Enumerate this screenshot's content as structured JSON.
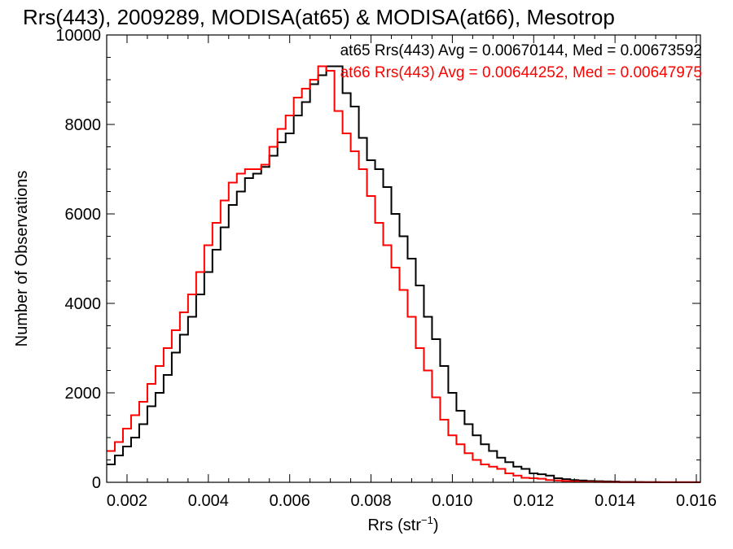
{
  "chart_data": {
    "type": "line",
    "title": "Rrs(443), 2009289, MODISA(at65) & MODISA(at66), Mesotrop",
    "xlabel": "Rrs (str",
    "xlabel_sup": "−1",
    "xlabel_suffix": ")",
    "ylabel": "Number of Observations",
    "xlim": [
      0.0015,
      0.0161
    ],
    "ylim": [
      0,
      10000
    ],
    "x_ticks": [
      0.002,
      0.004,
      0.006,
      0.008,
      0.01,
      0.012,
      0.014,
      0.016
    ],
    "x_tick_labels": [
      "0.002",
      "0.004",
      "0.006",
      "0.008",
      "0.010",
      "0.012",
      "0.014",
      "0.016"
    ],
    "y_ticks": [
      0,
      2000,
      4000,
      6000,
      8000,
      10000
    ],
    "y_tick_labels": [
      "0",
      "2000",
      "4000",
      "6000",
      "8000",
      "10000"
    ],
    "grid": false,
    "legend_position": "top-right",
    "legend": [
      "at65 Rrs(443) Avg = 0.00670144, Med = 0.00673592",
      "at66 Rrs(443) Avg = 0.00644252, Med = 0.00647975"
    ],
    "series": [
      {
        "name": "at65",
        "color": "#000000",
        "x": [
          0.0015,
          0.0017,
          0.0019,
          0.0021,
          0.0023,
          0.0025,
          0.0027,
          0.0029,
          0.0031,
          0.0033,
          0.0035,
          0.0037,
          0.0039,
          0.0041,
          0.0043,
          0.0045,
          0.0047,
          0.0049,
          0.0051,
          0.0053,
          0.0055,
          0.0057,
          0.0059,
          0.0061,
          0.0063,
          0.0065,
          0.0067,
          0.0069,
          0.0071,
          0.0073,
          0.0075,
          0.0077,
          0.0079,
          0.0081,
          0.0083,
          0.0085,
          0.0087,
          0.0089,
          0.0091,
          0.0093,
          0.0095,
          0.0097,
          0.0099,
          0.0101,
          0.0103,
          0.0105,
          0.0107,
          0.0109,
          0.0111,
          0.0113,
          0.0115,
          0.0117,
          0.0119,
          0.0121,
          0.0123,
          0.0125,
          0.0127,
          0.0129,
          0.0131,
          0.0133,
          0.0135,
          0.0137,
          0.0139,
          0.0141,
          0.0143,
          0.0145,
          0.0147,
          0.0149,
          0.0151,
          0.0153,
          0.0155,
          0.0157,
          0.0159,
          0.0161
        ],
        "y": [
          400,
          600,
          800,
          1000,
          1300,
          1700,
          2000,
          2400,
          2900,
          3300,
          3700,
          4200,
          4700,
          5200,
          5700,
          6200,
          6500,
          6800,
          6900,
          7050,
          7300,
          7600,
          7800,
          8200,
          8500,
          8900,
          9100,
          9300,
          9300,
          8700,
          8400,
          7700,
          7200,
          7000,
          6600,
          6000,
          5500,
          5000,
          4400,
          3700,
          3200,
          2600,
          2000,
          1600,
          1300,
          1050,
          850,
          700,
          550,
          450,
          350,
          300,
          200,
          180,
          150,
          90,
          70,
          50,
          40,
          30,
          25,
          20,
          15,
          10,
          8,
          6,
          5,
          4,
          3,
          3,
          2,
          2,
          2,
          2
        ]
      },
      {
        "name": "at66",
        "color": "#ff0000",
        "x": [
          0.0015,
          0.0017,
          0.0019,
          0.0021,
          0.0023,
          0.0025,
          0.0027,
          0.0029,
          0.0031,
          0.0033,
          0.0035,
          0.0037,
          0.0039,
          0.0041,
          0.0043,
          0.0045,
          0.0047,
          0.0049,
          0.0051,
          0.0053,
          0.0055,
          0.0057,
          0.0059,
          0.0061,
          0.0063,
          0.0065,
          0.0067,
          0.0069,
          0.0071,
          0.0073,
          0.0075,
          0.0077,
          0.0079,
          0.0081,
          0.0083,
          0.0085,
          0.0087,
          0.0089,
          0.0091,
          0.0093,
          0.0095,
          0.0097,
          0.0099,
          0.0101,
          0.0103,
          0.0105,
          0.0107,
          0.0109,
          0.0111,
          0.0113,
          0.0115,
          0.0117,
          0.0119,
          0.0121,
          0.0123,
          0.0125,
          0.0127,
          0.0129,
          0.0131,
          0.0133,
          0.0135,
          0.0137,
          0.0139,
          0.0141,
          0.0143,
          0.0145,
          0.0147,
          0.0149,
          0.0151,
          0.0153,
          0.0155,
          0.0157,
          0.0159,
          0.0161
        ],
        "y": [
          700,
          900,
          1200,
          1500,
          1800,
          2200,
          2600,
          3000,
          3400,
          3800,
          4200,
          4700,
          5300,
          5800,
          6300,
          6700,
          6900,
          7000,
          7000,
          7100,
          7500,
          7900,
          8200,
          8600,
          8800,
          9000,
          9300,
          9200,
          8300,
          7800,
          7400,
          7000,
          6400,
          5800,
          5300,
          4800,
          4300,
          3700,
          3000,
          2500,
          1900,
          1400,
          1050,
          850,
          650,
          500,
          400,
          350,
          300,
          200,
          150,
          100,
          90,
          80,
          50,
          40,
          30,
          20,
          10,
          8,
          6,
          5,
          4,
          3,
          3,
          2,
          2,
          2,
          2,
          2,
          2,
          2,
          2,
          2
        ]
      }
    ]
  }
}
